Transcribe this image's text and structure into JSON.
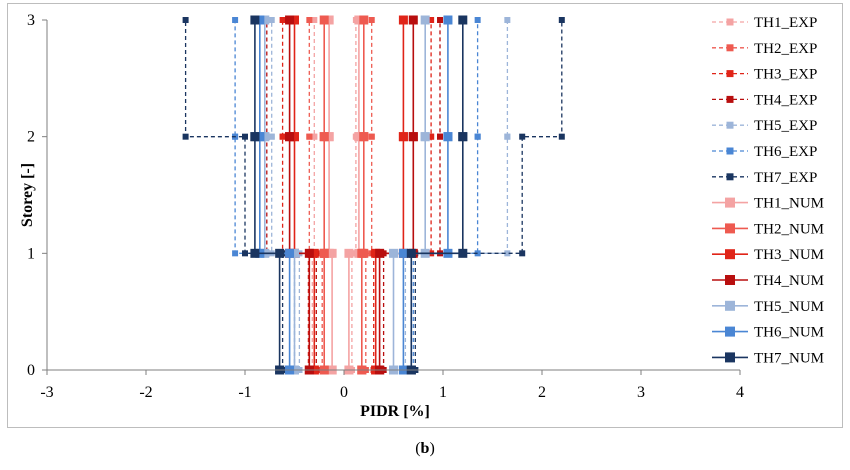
{
  "chart_data": {
    "type": "line",
    "xlabel": "PIDR [%]",
    "ylabel": "Storey [-]",
    "xlim": [
      -3,
      4
    ],
    "ylim": [
      0,
      3
    ],
    "xticks": [
      "-3",
      "-2",
      "-1",
      "0",
      "1",
      "2",
      "3",
      "4"
    ],
    "yticks": [
      "0",
      "1",
      "2",
      "3"
    ],
    "storeys": [
      0,
      1,
      2,
      3
    ],
    "legend_position": "right",
    "series": [
      {
        "name": "TH1_EXP",
        "style": "dashed",
        "color": "#f4a3a3",
        "min": [
          -0.32,
          -0.32,
          -0.3,
          -0.3
        ],
        "max": [
          0.08,
          0.08,
          0.12,
          0.12
        ]
      },
      {
        "name": "TH2_EXP",
        "style": "dashed",
        "color": "#ee5a50",
        "min": [
          -0.22,
          -0.22,
          -0.35,
          -0.35
        ],
        "max": [
          0.22,
          0.22,
          0.28,
          0.28
        ]
      },
      {
        "name": "TH3_EXP",
        "style": "dashed",
        "color": "#e02418",
        "min": [
          -0.36,
          -0.36,
          -0.62,
          -0.62
        ],
        "max": [
          0.3,
          0.3,
          0.88,
          0.88
        ]
      },
      {
        "name": "TH4_EXP",
        "style": "dashed",
        "color": "#b80e0e",
        "min": [
          -0.28,
          -0.28,
          -0.78,
          -0.78
        ],
        "max": [
          0.4,
          0.4,
          0.97,
          0.97
        ]
      },
      {
        "name": "TH5_EXP",
        "style": "dashed",
        "color": "#9db5d9",
        "min": [
          -0.45,
          -0.45,
          -0.73,
          -0.73
        ],
        "max": [
          0.62,
          0.62,
          1.65,
          1.65
        ]
      },
      {
        "name": "TH6_EXP",
        "style": "dashed",
        "color": "#4a86d4",
        "min": [
          -0.5,
          -0.5,
          -1.1,
          -1.1
        ],
        "max": [
          0.7,
          0.7,
          1.35,
          1.35
        ]
      },
      {
        "name": "TH7_EXP",
        "style": "dashed",
        "color": "#1a3560",
        "min": [
          -0.62,
          -0.62,
          -1.0,
          -1.6
        ],
        "max": [
          0.72,
          0.72,
          1.8,
          2.2
        ]
      },
      {
        "name": "TH1_NUM",
        "style": "solid",
        "color": "#f4a3a3",
        "min": [
          -0.12,
          -0.12,
          -0.15,
          -0.15
        ],
        "max": [
          0.05,
          0.05,
          0.15,
          0.15
        ]
      },
      {
        "name": "TH2_NUM",
        "style": "solid",
        "color": "#ee5a50",
        "min": [
          -0.2,
          -0.2,
          -0.2,
          -0.2
        ],
        "max": [
          0.18,
          0.18,
          0.2,
          0.2
        ]
      },
      {
        "name": "TH3_NUM",
        "style": "solid",
        "color": "#e02418",
        "min": [
          -0.3,
          -0.3,
          -0.5,
          -0.5
        ],
        "max": [
          0.32,
          0.32,
          0.6,
          0.6
        ]
      },
      {
        "name": "TH4_NUM",
        "style": "solid",
        "color": "#b80e0e",
        "min": [
          -0.35,
          -0.35,
          -0.55,
          -0.55
        ],
        "max": [
          0.36,
          0.36,
          0.7,
          0.7
        ]
      },
      {
        "name": "TH5_NUM",
        "style": "solid",
        "color": "#9db5d9",
        "min": [
          -0.5,
          -0.5,
          -0.8,
          -0.8
        ],
        "max": [
          0.5,
          0.5,
          0.82,
          0.82
        ]
      },
      {
        "name": "TH6_NUM",
        "style": "solid",
        "color": "#4a86d4",
        "min": [
          -0.55,
          -0.55,
          -0.85,
          -0.85
        ],
        "max": [
          0.6,
          0.6,
          1.05,
          1.05
        ]
      },
      {
        "name": "TH7_NUM",
        "style": "solid",
        "color": "#1a3560",
        "min": [
          -0.65,
          -0.65,
          -0.9,
          -0.9
        ],
        "max": [
          0.68,
          0.68,
          1.2,
          1.2
        ]
      }
    ]
  },
  "caption": {
    "open": "(",
    "letter": "b",
    "close": ")"
  }
}
